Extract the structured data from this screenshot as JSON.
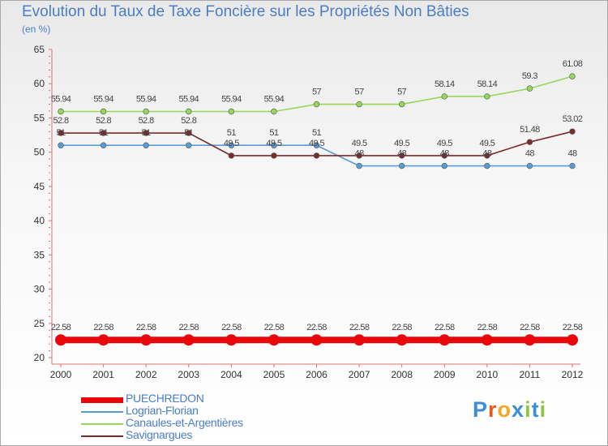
{
  "chart_data": {
    "type": "line",
    "title": "Evolution du Taux de Taxe Foncière sur les Propriétés Non Bâties",
    "unit_label": "(en %)",
    "x": [
      "2000",
      "2001",
      "2002",
      "2003",
      "2004",
      "2005",
      "2006",
      "2007",
      "2008",
      "2009",
      "2010",
      "2011",
      "2012"
    ],
    "ylim": [
      20,
      65
    ],
    "yticks": [
      "20",
      "25",
      "30",
      "35",
      "40",
      "45",
      "50",
      "55",
      "60",
      "65"
    ],
    "grid": false,
    "legend_position": "bottom-left",
    "series": [
      {
        "name": "PUECHREDON",
        "color": "#e8080b",
        "values": [
          22.58,
          22.58,
          22.58,
          22.58,
          22.58,
          22.58,
          22.58,
          22.58,
          22.58,
          22.58,
          22.58,
          22.58,
          22.58
        ],
        "labels": [
          "22.58",
          "22.58",
          "22.58",
          "22.58",
          "22.58",
          "22.58",
          "22.58",
          "22.58",
          "22.58",
          "22.58",
          "22.58",
          "22.58",
          "22.58"
        ]
      },
      {
        "name": "Logrian-Florian",
        "color": "#5b9bd5",
        "values": [
          51,
          51,
          51,
          51,
          51,
          51,
          51,
          48,
          48,
          48,
          48,
          48,
          48
        ],
        "labels": [
          "51",
          "51",
          "51",
          "51",
          "51",
          "51",
          "51",
          "48",
          "48",
          "48",
          "48",
          "48",
          "48"
        ]
      },
      {
        "name": "Canaules-et-Argentières",
        "color": "#96d75a",
        "values": [
          55.94,
          55.94,
          55.94,
          55.94,
          55.94,
          55.94,
          57,
          57,
          57,
          58.14,
          58.14,
          59.3,
          61.08
        ],
        "labels": [
          "55.94",
          "55.94",
          "55.94",
          "55.94",
          "55.94",
          "55.94",
          "57",
          "57",
          "57",
          "58.14",
          "58.14",
          "59.3",
          "61.08"
        ]
      },
      {
        "name": "Savignargues",
        "color": "#7b2b2b",
        "values": [
          52.8,
          52.8,
          52.8,
          52.8,
          49.5,
          49.5,
          49.5,
          49.5,
          49.5,
          49.5,
          49.5,
          51.48,
          53.02
        ],
        "labels": [
          "52.8",
          "52.8",
          "52.8",
          "52.8",
          "49.5",
          "49.5",
          "49.5",
          "49.5",
          "49.5",
          "49.5",
          "49.5",
          "51.48",
          "53.02"
        ]
      }
    ]
  },
  "logo": {
    "text": "Proxiti",
    "colors": [
      "#3b8fd9",
      "#e85a1c",
      "#f5a623",
      "#3b8fd9",
      "#8dc63f",
      "#3b8fd9",
      "#8dc63f"
    ]
  }
}
